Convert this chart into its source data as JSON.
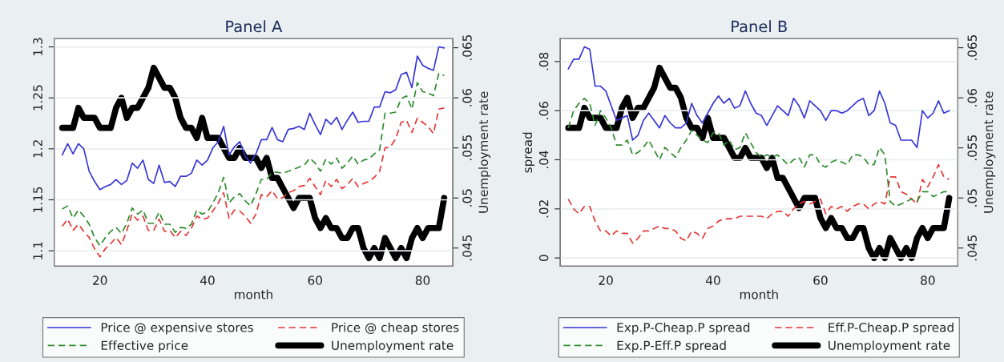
{
  "chart_data": [
    {
      "type": "line",
      "title": "Panel A",
      "xlabel": "month",
      "y2label": "Unemployment rate",
      "x": [
        13,
        14,
        15,
        16,
        17,
        18,
        19,
        20,
        21,
        22,
        23,
        24,
        25,
        26,
        27,
        28,
        29,
        30,
        31,
        32,
        33,
        34,
        35,
        36,
        37,
        38,
        39,
        40,
        41,
        42,
        43,
        44,
        45,
        46,
        47,
        48,
        49,
        50,
        51,
        52,
        53,
        54,
        55,
        56,
        57,
        58,
        59,
        60,
        61,
        62,
        63,
        64,
        65,
        66,
        67,
        68,
        69,
        70,
        71,
        72,
        73,
        74,
        75,
        76,
        77,
        78,
        79,
        80,
        81,
        82,
        83,
        84
      ],
      "xlim": [
        11.5,
        85.6
      ],
      "xticks": [
        20,
        40,
        60,
        80
      ],
      "ylim": [
        1.085,
        1.308
      ],
      "yticks": [
        1.1,
        1.15,
        1.2,
        1.25,
        1.3
      ],
      "y2lim": [
        0.0432,
        0.0659
      ],
      "y2ticks": [
        {
          "value": 0.045,
          "label": ".045"
        },
        {
          "value": 0.05,
          "label": ".05"
        },
        {
          "value": 0.055,
          "label": ".055"
        },
        {
          "value": 0.06,
          "label": ".06"
        },
        {
          "value": 0.065,
          "label": ".065"
        }
      ],
      "grid": "y",
      "legend": "bottom",
      "series": [
        {
          "name": "Price @ expensive stores",
          "color": "#3535d8",
          "line_style": "solid",
          "values": [
            1.194,
            1.205,
            1.195,
            1.205,
            1.2,
            1.178,
            1.168,
            1.16,
            1.163,
            1.165,
            1.17,
            1.165,
            1.169,
            1.186,
            1.181,
            1.189,
            1.17,
            1.166,
            1.184,
            1.167,
            1.168,
            1.163,
            1.173,
            1.173,
            1.176,
            1.189,
            1.184,
            1.189,
            1.201,
            1.207,
            1.222,
            1.194,
            1.202,
            1.207,
            1.193,
            1.186,
            1.195,
            1.209,
            1.209,
            1.221,
            1.209,
            1.207,
            1.219,
            1.22,
            1.222,
            1.219,
            1.235,
            1.224,
            1.214,
            1.229,
            1.224,
            1.231,
            1.219,
            1.228,
            1.236,
            1.226,
            1.227,
            1.227,
            1.241,
            1.241,
            1.256,
            1.255,
            1.258,
            1.273,
            1.275,
            1.26,
            1.291,
            1.282,
            1.279,
            1.277,
            1.3,
            1.299
          ]
        },
        {
          "name": "Price @ cheap stores",
          "color": "#e53535",
          "line_style": "dashed",
          "values": [
            1.124,
            1.131,
            1.12,
            1.126,
            1.119,
            1.113,
            1.102,
            1.094,
            1.102,
            1.107,
            1.113,
            1.106,
            1.12,
            1.136,
            1.13,
            1.134,
            1.12,
            1.12,
            1.131,
            1.119,
            1.12,
            1.113,
            1.119,
            1.115,
            1.122,
            1.134,
            1.131,
            1.132,
            1.139,
            1.147,
            1.157,
            1.132,
            1.14,
            1.139,
            1.134,
            1.127,
            1.136,
            1.155,
            1.153,
            1.159,
            1.151,
            1.152,
            1.157,
            1.159,
            1.163,
            1.164,
            1.171,
            1.163,
            1.155,
            1.169,
            1.163,
            1.17,
            1.161,
            1.165,
            1.171,
            1.163,
            1.166,
            1.168,
            1.172,
            1.178,
            1.201,
            1.202,
            1.21,
            1.226,
            1.228,
            1.216,
            1.23,
            1.226,
            1.222,
            1.215,
            1.239,
            1.24
          ]
        },
        {
          "name": "Effective price",
          "color": "#2a8a2a",
          "line_style": "dashed",
          "values": [
            1.141,
            1.144,
            1.132,
            1.14,
            1.134,
            1.126,
            1.113,
            1.105,
            1.113,
            1.119,
            1.123,
            1.117,
            1.127,
            1.142,
            1.136,
            1.14,
            1.127,
            1.127,
            1.138,
            1.126,
            1.126,
            1.118,
            1.123,
            1.122,
            1.126,
            1.14,
            1.136,
            1.138,
            1.147,
            1.157,
            1.172,
            1.147,
            1.153,
            1.156,
            1.149,
            1.144,
            1.156,
            1.17,
            1.17,
            1.177,
            1.177,
            1.176,
            1.178,
            1.18,
            1.182,
            1.184,
            1.191,
            1.186,
            1.178,
            1.19,
            1.185,
            1.191,
            1.181,
            1.186,
            1.193,
            1.185,
            1.189,
            1.19,
            1.195,
            1.199,
            1.235,
            1.235,
            1.236,
            1.249,
            1.252,
            1.239,
            1.265,
            1.256,
            1.255,
            1.252,
            1.274,
            1.272
          ]
        },
        {
          "name": "Unemployment rate",
          "color": "#000000",
          "line_style": "solid",
          "axis": "y2",
          "values": [
            0.057,
            0.057,
            0.057,
            0.059,
            0.058,
            0.058,
            0.058,
            0.057,
            0.057,
            0.057,
            0.059,
            0.06,
            0.058,
            0.059,
            0.059,
            0.06,
            0.061,
            0.063,
            0.062,
            0.061,
            0.061,
            0.06,
            0.058,
            0.057,
            0.057,
            0.056,
            0.058,
            0.056,
            0.056,
            0.056,
            0.055,
            0.054,
            0.054,
            0.055,
            0.054,
            0.054,
            0.054,
            0.053,
            0.054,
            0.052,
            0.052,
            0.051,
            0.05,
            0.049,
            0.05,
            0.05,
            0.05,
            0.048,
            0.047,
            0.048,
            0.047,
            0.047,
            0.046,
            0.046,
            0.047,
            0.047,
            0.045,
            0.044,
            0.045,
            0.044,
            0.046,
            0.045,
            0.044,
            0.045,
            0.044,
            0.046,
            0.047,
            0.046,
            0.047,
            0.047,
            0.047,
            0.05
          ]
        }
      ]
    },
    {
      "type": "line",
      "title": "Panel B",
      "xlabel": "month",
      "ylabel": "spread",
      "y2label": "Unemployment rate",
      "x": [
        13,
        14,
        15,
        16,
        17,
        18,
        19,
        20,
        21,
        22,
        23,
        24,
        25,
        26,
        27,
        28,
        29,
        30,
        31,
        32,
        33,
        34,
        35,
        36,
        37,
        38,
        39,
        40,
        41,
        42,
        43,
        44,
        45,
        46,
        47,
        48,
        49,
        50,
        51,
        52,
        53,
        54,
        55,
        56,
        57,
        58,
        59,
        60,
        61,
        62,
        63,
        64,
        65,
        66,
        67,
        68,
        69,
        70,
        71,
        72,
        73,
        74,
        75,
        76,
        77,
        78,
        79,
        80,
        81,
        82,
        83,
        84
      ],
      "xlim": [
        11.5,
        85.6
      ],
      "xticks": [
        20,
        40,
        60,
        80
      ],
      "ylim": [
        -0.0033,
        0.0893
      ],
      "yticks": [
        {
          "value": 0,
          "label": "0"
        },
        {
          "value": 0.02,
          "label": ".02"
        },
        {
          "value": 0.04,
          "label": ".04"
        },
        {
          "value": 0.06,
          "label": ".06"
        },
        {
          "value": 0.08,
          "label": ".08"
        }
      ],
      "y2lim": [
        0.0432,
        0.0659
      ],
      "y2ticks": [
        {
          "value": 0.045,
          "label": ".045"
        },
        {
          "value": 0.05,
          "label": ".05"
        },
        {
          "value": 0.055,
          "label": ".055"
        },
        {
          "value": 0.06,
          "label": ".06"
        },
        {
          "value": 0.065,
          "label": ".065"
        }
      ],
      "grid": "y",
      "legend": "bottom",
      "series": [
        {
          "name": "Exp.P-Cheap.P spread",
          "color": "#3535d8",
          "line_style": "solid",
          "values": [
            0.077,
            0.081,
            0.081,
            0.086,
            0.085,
            0.07,
            0.07,
            0.068,
            0.062,
            0.056,
            0.057,
            0.058,
            0.048,
            0.05,
            0.056,
            0.059,
            0.056,
            0.053,
            0.058,
            0.055,
            0.053,
            0.053,
            0.055,
            0.063,
            0.058,
            0.055,
            0.059,
            0.063,
            0.066,
            0.063,
            0.065,
            0.061,
            0.062,
            0.068,
            0.063,
            0.059,
            0.058,
            0.054,
            0.058,
            0.062,
            0.06,
            0.058,
            0.065,
            0.062,
            0.057,
            0.064,
            0.062,
            0.06,
            0.056,
            0.06,
            0.06,
            0.059,
            0.06,
            0.062,
            0.064,
            0.065,
            0.058,
            0.06,
            0.068,
            0.063,
            0.055,
            0.054,
            0.048,
            0.048,
            0.048,
            0.045,
            0.06,
            0.057,
            0.059,
            0.064,
            0.059,
            0.06
          ]
        },
        {
          "name": "Eff.P-Cheap.P spread",
          "color": "#e53535",
          "line_style": "dashed",
          "values": [
            0.024,
            0.02,
            0.018,
            0.021,
            0.021,
            0.015,
            0.011,
            0.011,
            0.009,
            0.011,
            0.01,
            0.01,
            0.006,
            0.008,
            0.011,
            0.011,
            0.012,
            0.013,
            0.012,
            0.012,
            0.011,
            0.008,
            0.007,
            0.011,
            0.01,
            0.008,
            0.012,
            0.013,
            0.015,
            0.016,
            0.016,
            0.016,
            0.017,
            0.017,
            0.017,
            0.017,
            0.017,
            0.016,
            0.018,
            0.019,
            0.019,
            0.017,
            0.02,
            0.022,
            0.023,
            0.022,
            0.023,
            0.024,
            0.018,
            0.021,
            0.02,
            0.021,
            0.019,
            0.021,
            0.022,
            0.022,
            0.02,
            0.022,
            0.023,
            0.022,
            0.033,
            0.033,
            0.027,
            0.026,
            0.024,
            0.022,
            0.032,
            0.029,
            0.033,
            0.038,
            0.033,
            0.032
          ]
        },
        {
          "name": "Exp.P-Eff.P spread",
          "color": "#2a8a2a",
          "line_style": "dashed",
          "values": [
            0.053,
            0.06,
            0.063,
            0.065,
            0.063,
            0.054,
            0.06,
            0.057,
            0.053,
            0.046,
            0.046,
            0.048,
            0.042,
            0.043,
            0.045,
            0.048,
            0.044,
            0.04,
            0.045,
            0.043,
            0.041,
            0.045,
            0.048,
            0.052,
            0.05,
            0.048,
            0.047,
            0.051,
            0.051,
            0.046,
            0.048,
            0.044,
            0.045,
            0.051,
            0.047,
            0.043,
            0.041,
            0.042,
            0.041,
            0.042,
            0.04,
            0.038,
            0.04,
            0.041,
            0.037,
            0.042,
            0.042,
            0.038,
            0.037,
            0.039,
            0.04,
            0.039,
            0.038,
            0.042,
            0.042,
            0.041,
            0.038,
            0.038,
            0.045,
            0.042,
            0.023,
            0.021,
            0.022,
            0.023,
            0.024,
            0.023,
            0.027,
            0.027,
            0.025,
            0.026,
            0.027,
            0.027
          ]
        },
        {
          "name": "Unemployment rate",
          "color": "#000000",
          "line_style": "solid",
          "axis": "y2",
          "values": [
            0.057,
            0.057,
            0.057,
            0.059,
            0.058,
            0.058,
            0.058,
            0.057,
            0.057,
            0.057,
            0.059,
            0.06,
            0.058,
            0.059,
            0.059,
            0.06,
            0.061,
            0.063,
            0.062,
            0.061,
            0.061,
            0.06,
            0.058,
            0.057,
            0.057,
            0.056,
            0.058,
            0.056,
            0.056,
            0.056,
            0.055,
            0.054,
            0.054,
            0.055,
            0.054,
            0.054,
            0.054,
            0.053,
            0.054,
            0.052,
            0.052,
            0.051,
            0.05,
            0.049,
            0.05,
            0.05,
            0.05,
            0.048,
            0.047,
            0.048,
            0.047,
            0.047,
            0.046,
            0.046,
            0.047,
            0.047,
            0.045,
            0.044,
            0.045,
            0.044,
            0.046,
            0.045,
            0.044,
            0.045,
            0.044,
            0.046,
            0.047,
            0.046,
            0.047,
            0.047,
            0.047,
            0.05
          ]
        }
      ]
    }
  ]
}
